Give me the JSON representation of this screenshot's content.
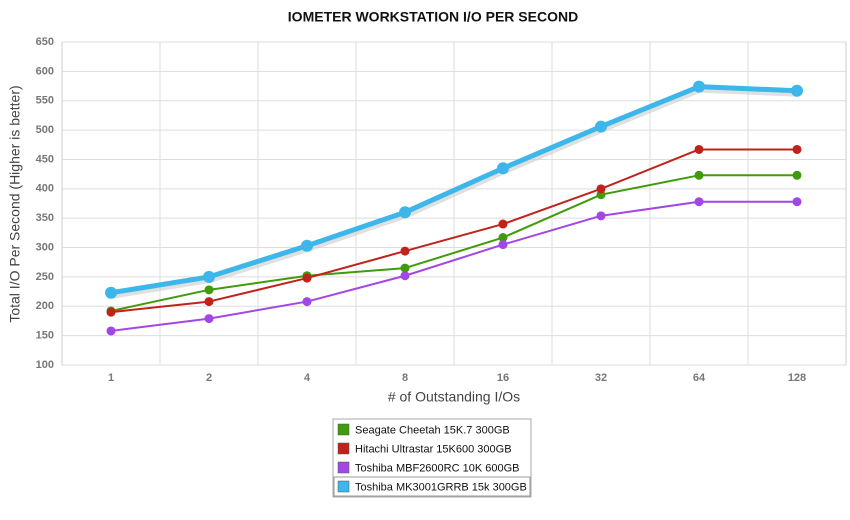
{
  "chart_data": {
    "type": "line",
    "title": "IOMETER WORKSTATION I/O PER SECOND",
    "x_label": "# of Outstanding I/Os",
    "y_label": "Total I/O Per Second (Higher is better)",
    "categories": [
      "1",
      "2",
      "4",
      "8",
      "16",
      "32",
      "64",
      "128"
    ],
    "series": [
      {
        "name": "Seagate Cheetah 15K.7 300GB",
        "color": "#3f9b0b",
        "values": [
          192,
          228,
          252,
          265,
          317,
          390,
          423,
          423
        ]
      },
      {
        "name": "Hitachi Ultrastar 15K600 300GB",
        "color": "#c0231b",
        "values": [
          190,
          208,
          248,
          294,
          340,
          400,
          467,
          467
        ]
      },
      {
        "name": "Toshiba MBF2600RC 10K 600GB",
        "color": "#a346e6",
        "values": [
          158,
          179,
          208,
          252,
          305,
          354,
          378,
          378
        ]
      },
      {
        "name": "Toshiba MK3001GRRB 15k 300GB",
        "color": "#3db6ea",
        "values": [
          223,
          250,
          303,
          360,
          435,
          506,
          574,
          567
        ]
      }
    ],
    "ylim": [
      100,
      650
    ],
    "yticks": [
      100,
      150,
      200,
      250,
      300,
      350,
      400,
      450,
      500,
      550,
      600,
      650
    ],
    "grid": true,
    "legend": "bottom"
  }
}
